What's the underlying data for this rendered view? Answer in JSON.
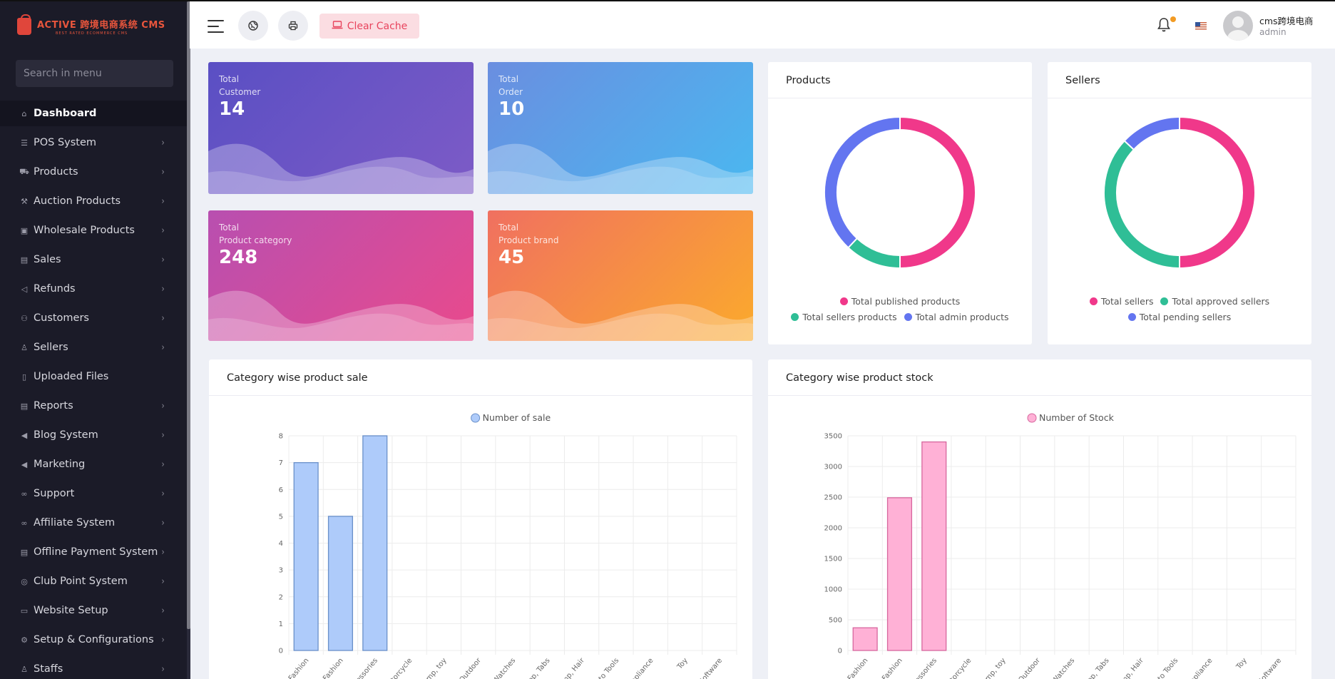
{
  "brand": {
    "name": "ACTIVE 跨境电商系统 CMS",
    "tagline": "BEST RATED ECOMMERCE CMS"
  },
  "sidebar": {
    "search_placeholder": "Search in menu",
    "items": [
      {
        "label": "Dashboard",
        "icon": "home-icon",
        "has_children": false,
        "active": true
      },
      {
        "label": "POS System",
        "icon": "list-icon",
        "has_children": true
      },
      {
        "label": "Products",
        "icon": "cart-icon",
        "has_children": true
      },
      {
        "label": "Auction Products",
        "icon": "gavel-icon",
        "has_children": true
      },
      {
        "label": "Wholesale Products",
        "icon": "box-icon",
        "has_children": true
      },
      {
        "label": "Sales",
        "icon": "money-icon",
        "has_children": true
      },
      {
        "label": "Refunds",
        "icon": "backward-icon",
        "has_children": true
      },
      {
        "label": "Customers",
        "icon": "users-icon",
        "has_children": true
      },
      {
        "label": "Sellers",
        "icon": "user-icon",
        "has_children": true
      },
      {
        "label": "Uploaded Files",
        "icon": "folder-icon",
        "has_children": false
      },
      {
        "label": "Reports",
        "icon": "file-icon",
        "has_children": true
      },
      {
        "label": "Blog System",
        "icon": "bullhorn-icon",
        "has_children": true
      },
      {
        "label": "Marketing",
        "icon": "bullhorn-icon",
        "has_children": true
      },
      {
        "label": "Support",
        "icon": "link-icon",
        "has_children": true
      },
      {
        "label": "Affiliate System",
        "icon": "link-icon",
        "has_children": true
      },
      {
        "label": "Offline Payment System",
        "icon": "money-icon",
        "has_children": true
      },
      {
        "label": "Club Point System",
        "icon": "coin-icon",
        "has_children": true
      },
      {
        "label": "Website Setup",
        "icon": "desktop-icon",
        "has_children": true
      },
      {
        "label": "Setup & Configurations",
        "icon": "gear-icon",
        "has_children": true
      },
      {
        "label": "Staffs",
        "icon": "user-icon",
        "has_children": true
      }
    ]
  },
  "topbar": {
    "clear_cache_label": "Clear Cache",
    "user_name": "cms跨境电商",
    "user_role": "admin"
  },
  "stats": [
    {
      "line1": "Total",
      "line2": "Customer",
      "value": "14",
      "gradient": [
        "#5a4fc4",
        "#7d5bc6"
      ]
    },
    {
      "line1": "Total",
      "line2": "Order",
      "value": "10",
      "gradient": [
        "#6a8ee0",
        "#4ab8f0"
      ]
    },
    {
      "line1": "Total",
      "line2": "Product category",
      "value": "248",
      "gradient": [
        "#b84fb0",
        "#e94a8c"
      ]
    },
    {
      "line1": "Total",
      "line2": "Product brand",
      "value": "45",
      "gradient": [
        "#f07060",
        "#fbaa2c"
      ]
    }
  ],
  "products_panel": {
    "title": "Products",
    "legend": [
      "Total published products",
      "Total sellers products",
      "Total admin products"
    ],
    "colors": [
      "#f0388a",
      "#2fbe96",
      "#6375f0"
    ]
  },
  "sellers_panel": {
    "title": "Sellers",
    "legend": [
      "Total sellers",
      "Total approved sellers",
      "Total pending sellers"
    ],
    "colors": [
      "#f0388a",
      "#2fbe96",
      "#6375f0"
    ]
  },
  "chart_data": [
    {
      "type": "pie",
      "title": "Products",
      "labels": [
        "Total published products",
        "Total sellers products",
        "Total admin products"
      ],
      "values": [
        50,
        12,
        38
      ]
    },
    {
      "type": "pie",
      "title": "Sellers",
      "labels": [
        "Total sellers",
        "Total approved sellers",
        "Total pending sellers"
      ],
      "values": [
        50,
        37,
        13
      ]
    },
    {
      "type": "bar",
      "title": "Category wise product sale",
      "categories": [
        "Fashion",
        "Fashion",
        "Accessories",
        "Motorcycle",
        "Stamp, toy",
        "Outdoor",
        "Watches",
        "Laptop, Tabs",
        "Hamp, Hair",
        "Auto Tools",
        "Appliance",
        "Toy",
        "Software"
      ],
      "series": [
        {
          "name": "Number of sale",
          "values": [
            7,
            5,
            8,
            0,
            0,
            0,
            0,
            0,
            0,
            0,
            0,
            0,
            0
          ]
        }
      ],
      "ylim": [
        0,
        8
      ],
      "yticks": [
        0,
        1,
        2,
        3,
        4,
        5,
        6,
        7,
        8
      ],
      "color": "#aecbfa",
      "border": "#6a90c9"
    },
    {
      "type": "bar",
      "title": "Category wise product stock",
      "categories": [
        "Fashion",
        "Fashion",
        "Accessories",
        "Motorcycle",
        "Stamp, toy",
        "Outdoor",
        "Watches",
        "Laptop, Tabs",
        "Hamp, Hair",
        "Auto Tools",
        "Appliance",
        "Toy",
        "Software"
      ],
      "series": [
        {
          "name": "Number of Stock",
          "values": [
            370,
            2490,
            3400,
            0,
            0,
            0,
            0,
            0,
            0,
            0,
            0,
            0,
            0
          ]
        }
      ],
      "ylim": [
        0,
        3500
      ],
      "yticks": [
        0,
        500,
        1000,
        1500,
        2000,
        2500,
        3000,
        3500
      ],
      "color": "#ffb1d6",
      "border": "#d7679e"
    }
  ]
}
